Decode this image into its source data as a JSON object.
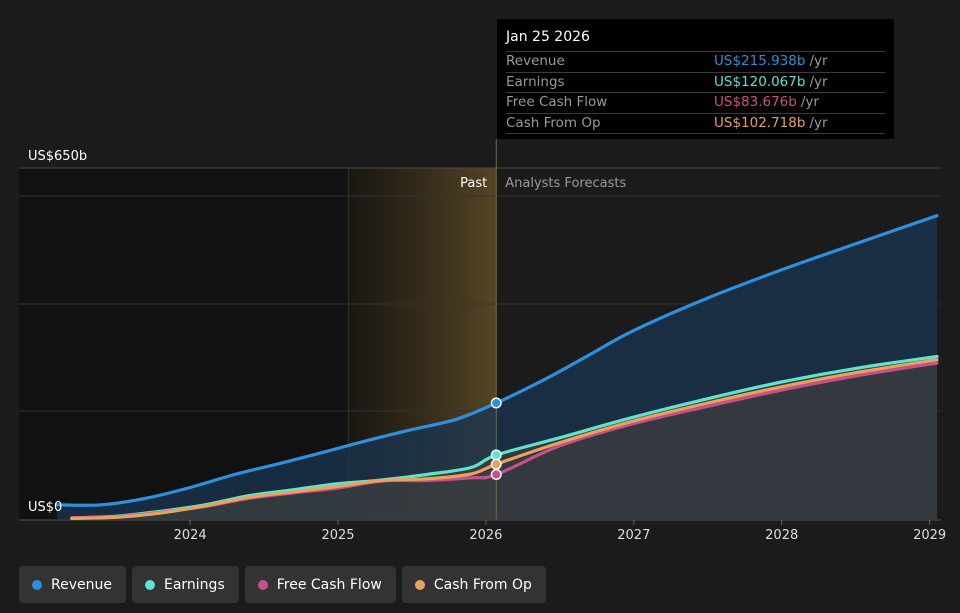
{
  "chart_data": {
    "type": "area",
    "y_axis": {
      "top_label": "US$650b",
      "bottom_label": "US$0",
      "ylim": [
        0,
        650
      ]
    },
    "x_ticks": [
      "2024",
      "2025",
      "2026",
      "2027",
      "2028",
      "2029"
    ],
    "xlim": [
      2023.1,
      2029.05
    ],
    "divider_x": 2026.07,
    "shaded_start_x": 2025.07,
    "region_labels": {
      "past": "Past",
      "forecast": "Analysts Forecasts"
    },
    "grid": true,
    "series": [
      {
        "name": "Revenue",
        "color": "#2e8fdc",
        "points": [
          [
            2023.1,
            28
          ],
          [
            2023.4,
            28
          ],
          [
            2023.7,
            40
          ],
          [
            2024.0,
            60
          ],
          [
            2024.3,
            84
          ],
          [
            2024.6,
            104
          ],
          [
            2024.9,
            125
          ],
          [
            2025.2,
            147
          ],
          [
            2025.5,
            167
          ],
          [
            2025.8,
            186
          ],
          [
            2026.07,
            216
          ],
          [
            2026.4,
            260
          ],
          [
            2026.7,
            305
          ],
          [
            2027.0,
            350
          ],
          [
            2027.5,
            410
          ],
          [
            2028.0,
            462
          ],
          [
            2028.5,
            510
          ],
          [
            2029.05,
            562
          ]
        ]
      },
      {
        "name": "Earnings",
        "color": "#5fe3cf",
        "points": [
          [
            2023.2,
            4
          ],
          [
            2023.5,
            7
          ],
          [
            2023.8,
            16
          ],
          [
            2024.1,
            28
          ],
          [
            2024.4,
            45
          ],
          [
            2024.7,
            56
          ],
          [
            2025.0,
            67
          ],
          [
            2025.3,
            74
          ],
          [
            2025.6,
            84
          ],
          [
            2025.9,
            97
          ],
          [
            2026.07,
            120
          ],
          [
            2026.5,
            152
          ],
          [
            2027.0,
            190
          ],
          [
            2027.5,
            224
          ],
          [
            2028.0,
            255
          ],
          [
            2028.5,
            280
          ],
          [
            2029.05,
            302
          ]
        ]
      },
      {
        "name": "Free Cash Flow",
        "color": "#c94f8a",
        "points": [
          [
            2023.2,
            4
          ],
          [
            2023.5,
            6
          ],
          [
            2023.8,
            14
          ],
          [
            2024.1,
            25
          ],
          [
            2024.4,
            40
          ],
          [
            2024.7,
            50
          ],
          [
            2025.0,
            59
          ],
          [
            2025.3,
            72
          ],
          [
            2025.6,
            73
          ],
          [
            2025.9,
            78
          ],
          [
            2026.07,
            84
          ],
          [
            2026.5,
            137
          ],
          [
            2027.0,
            178
          ],
          [
            2027.5,
            210
          ],
          [
            2028.0,
            240
          ],
          [
            2028.5,
            266
          ],
          [
            2029.05,
            290
          ]
        ]
      },
      {
        "name": "Cash From Op",
        "color": "#e6a35b",
        "points": [
          [
            2023.2,
            3
          ],
          [
            2023.5,
            5
          ],
          [
            2023.8,
            13
          ],
          [
            2024.1,
            26
          ],
          [
            2024.4,
            42
          ],
          [
            2024.7,
            52
          ],
          [
            2025.0,
            62
          ],
          [
            2025.3,
            73
          ],
          [
            2025.6,
            76
          ],
          [
            2025.9,
            85
          ],
          [
            2026.07,
            103
          ],
          [
            2026.5,
            143
          ],
          [
            2027.0,
            183
          ],
          [
            2027.5,
            216
          ],
          [
            2028.0,
            246
          ],
          [
            2028.5,
            272
          ],
          [
            2029.05,
            296
          ]
        ]
      }
    ]
  },
  "tooltip": {
    "date": "Jan 25 2026",
    "unit": "/yr",
    "rows": [
      {
        "name": "Revenue",
        "value": "US$215.938b",
        "color": "#2e8fdc"
      },
      {
        "name": "Earnings",
        "value": "US$120.067b",
        "color": "#5fe3cf"
      },
      {
        "name": "Free Cash Flow",
        "value": "US$83.676b",
        "color": "#c94f8a"
      },
      {
        "name": "Cash From Op",
        "value": "US$102.718b",
        "color": "#e6a35b"
      }
    ]
  },
  "legend": [
    {
      "label": "Revenue",
      "color": "#2e8fdc"
    },
    {
      "label": "Earnings",
      "color": "#5fe3cf"
    },
    {
      "label": "Free Cash Flow",
      "color": "#c94f8a"
    },
    {
      "label": "Cash From Op",
      "color": "#e6a35b"
    }
  ]
}
